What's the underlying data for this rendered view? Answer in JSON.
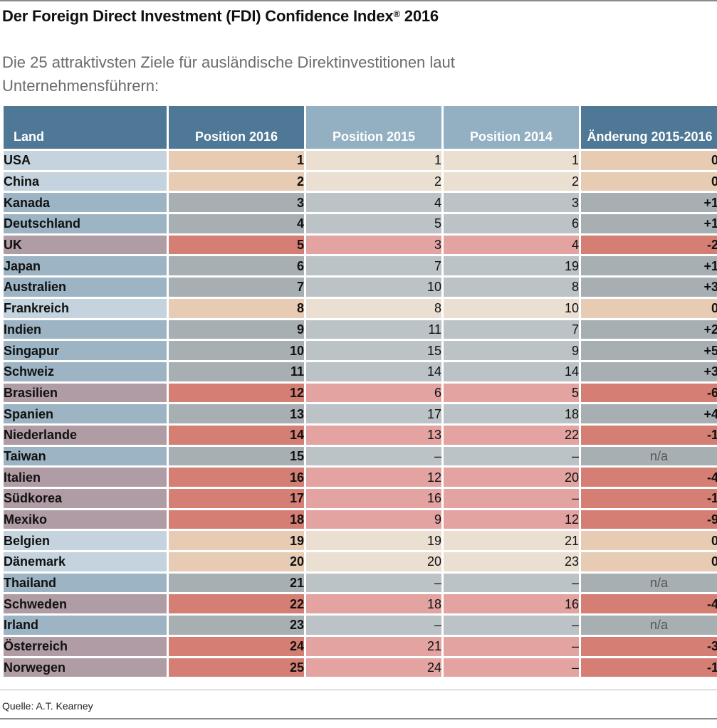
{
  "title": "Der Foreign Direct Investment (FDI) Confidence Index",
  "title_mark": "®",
  "title_year": "2016",
  "subtitle": "Die 25 attraktivsten Ziele für ausländische Direktinvestitionen laut Unternehmensführern:",
  "source": "Quelle: A.T. Kearney",
  "colors": {
    "header_dark": "#4e7896",
    "header_light": "#93b0c3",
    "same": {
      "land": "#c4d3dd",
      "strong": "#e7cbb2",
      "soft": "#ebdfd2"
    },
    "up": {
      "land": "#9cb4c3",
      "strong": "#a8afb3",
      "soft": "#bcc3c7"
    },
    "down": {
      "land": "#b09ca4",
      "strong": "#d47e74",
      "soft": "#e2a3a1"
    },
    "na": {
      "land": "#9cb4c3",
      "strong": "#a8afb3",
      "soft": "#bcc3c7"
    }
  },
  "chart_data": {
    "type": "table",
    "columns": [
      "Land",
      "Position 2016",
      "Position 2015",
      "Position 2014",
      "Änderung 2015-2016"
    ],
    "rows": [
      {
        "land": "USA",
        "p2016": "1",
        "p2015": "1",
        "p2014": "1",
        "change": "0",
        "trend": "same"
      },
      {
        "land": "China",
        "p2016": "2",
        "p2015": "2",
        "p2014": "2",
        "change": "0",
        "trend": "same"
      },
      {
        "land": "Kanada",
        "p2016": "3",
        "p2015": "4",
        "p2014": "3",
        "change": "+1",
        "trend": "up"
      },
      {
        "land": "Deutschland",
        "p2016": "4",
        "p2015": "5",
        "p2014": "6",
        "change": "+1",
        "trend": "up"
      },
      {
        "land": "UK",
        "p2016": "5",
        "p2015": "3",
        "p2014": "4",
        "change": "-2",
        "trend": "down"
      },
      {
        "land": "Japan",
        "p2016": "6",
        "p2015": "7",
        "p2014": "19",
        "change": "+1",
        "trend": "up"
      },
      {
        "land": "Australien",
        "p2016": "7",
        "p2015": "10",
        "p2014": "8",
        "change": "+3",
        "trend": "up"
      },
      {
        "land": "Frankreich",
        "p2016": "8",
        "p2015": "8",
        "p2014": "10",
        "change": "0",
        "trend": "same"
      },
      {
        "land": "Indien",
        "p2016": "9",
        "p2015": "11",
        "p2014": "7",
        "change": "+2",
        "trend": "up"
      },
      {
        "land": "Singapur",
        "p2016": "10",
        "p2015": "15",
        "p2014": "9",
        "change": "+5",
        "trend": "up"
      },
      {
        "land": "Schweiz",
        "p2016": "11",
        "p2015": "14",
        "p2014": "14",
        "change": "+3",
        "trend": "up"
      },
      {
        "land": "Brasilien",
        "p2016": "12",
        "p2015": "6",
        "p2014": "5",
        "change": "-6",
        "trend": "down"
      },
      {
        "land": "Spanien",
        "p2016": "13",
        "p2015": "17",
        "p2014": "18",
        "change": "+4",
        "trend": "up"
      },
      {
        "land": "Niederlande",
        "p2016": "14",
        "p2015": "13",
        "p2014": "22",
        "change": "-1",
        "trend": "down"
      },
      {
        "land": "Taiwan",
        "p2016": "15",
        "p2015": "–",
        "p2014": "–",
        "change": "n/a",
        "trend": "na"
      },
      {
        "land": "Italien",
        "p2016": "16",
        "p2015": "12",
        "p2014": "20",
        "change": "-4",
        "trend": "down"
      },
      {
        "land": "Südkorea",
        "p2016": "17",
        "p2015": "16",
        "p2014": "–",
        "change": "-1",
        "trend": "down"
      },
      {
        "land": "Mexiko",
        "p2016": "18",
        "p2015": "9",
        "p2014": "12",
        "change": "-9",
        "trend": "down"
      },
      {
        "land": "Belgien",
        "p2016": "19",
        "p2015": "19",
        "p2014": "21",
        "change": "0",
        "trend": "same"
      },
      {
        "land": "Dänemark",
        "p2016": "20",
        "p2015": "20",
        "p2014": "23",
        "change": "0",
        "trend": "same"
      },
      {
        "land": "Thailand",
        "p2016": "21",
        "p2015": "–",
        "p2014": "–",
        "change": "n/a",
        "trend": "na"
      },
      {
        "land": "Schweden",
        "p2016": "22",
        "p2015": "18",
        "p2014": "16",
        "change": "-4",
        "trend": "down"
      },
      {
        "land": "Irland",
        "p2016": "23",
        "p2015": "–",
        "p2014": "–",
        "change": "n/a",
        "trend": "na"
      },
      {
        "land": "Österreich",
        "p2016": "24",
        "p2015": "21",
        "p2014": "–",
        "change": "-3",
        "trend": "down"
      },
      {
        "land": "Norwegen",
        "p2016": "25",
        "p2015": "24",
        "p2014": "–",
        "change": "-1",
        "trend": "down"
      }
    ]
  }
}
